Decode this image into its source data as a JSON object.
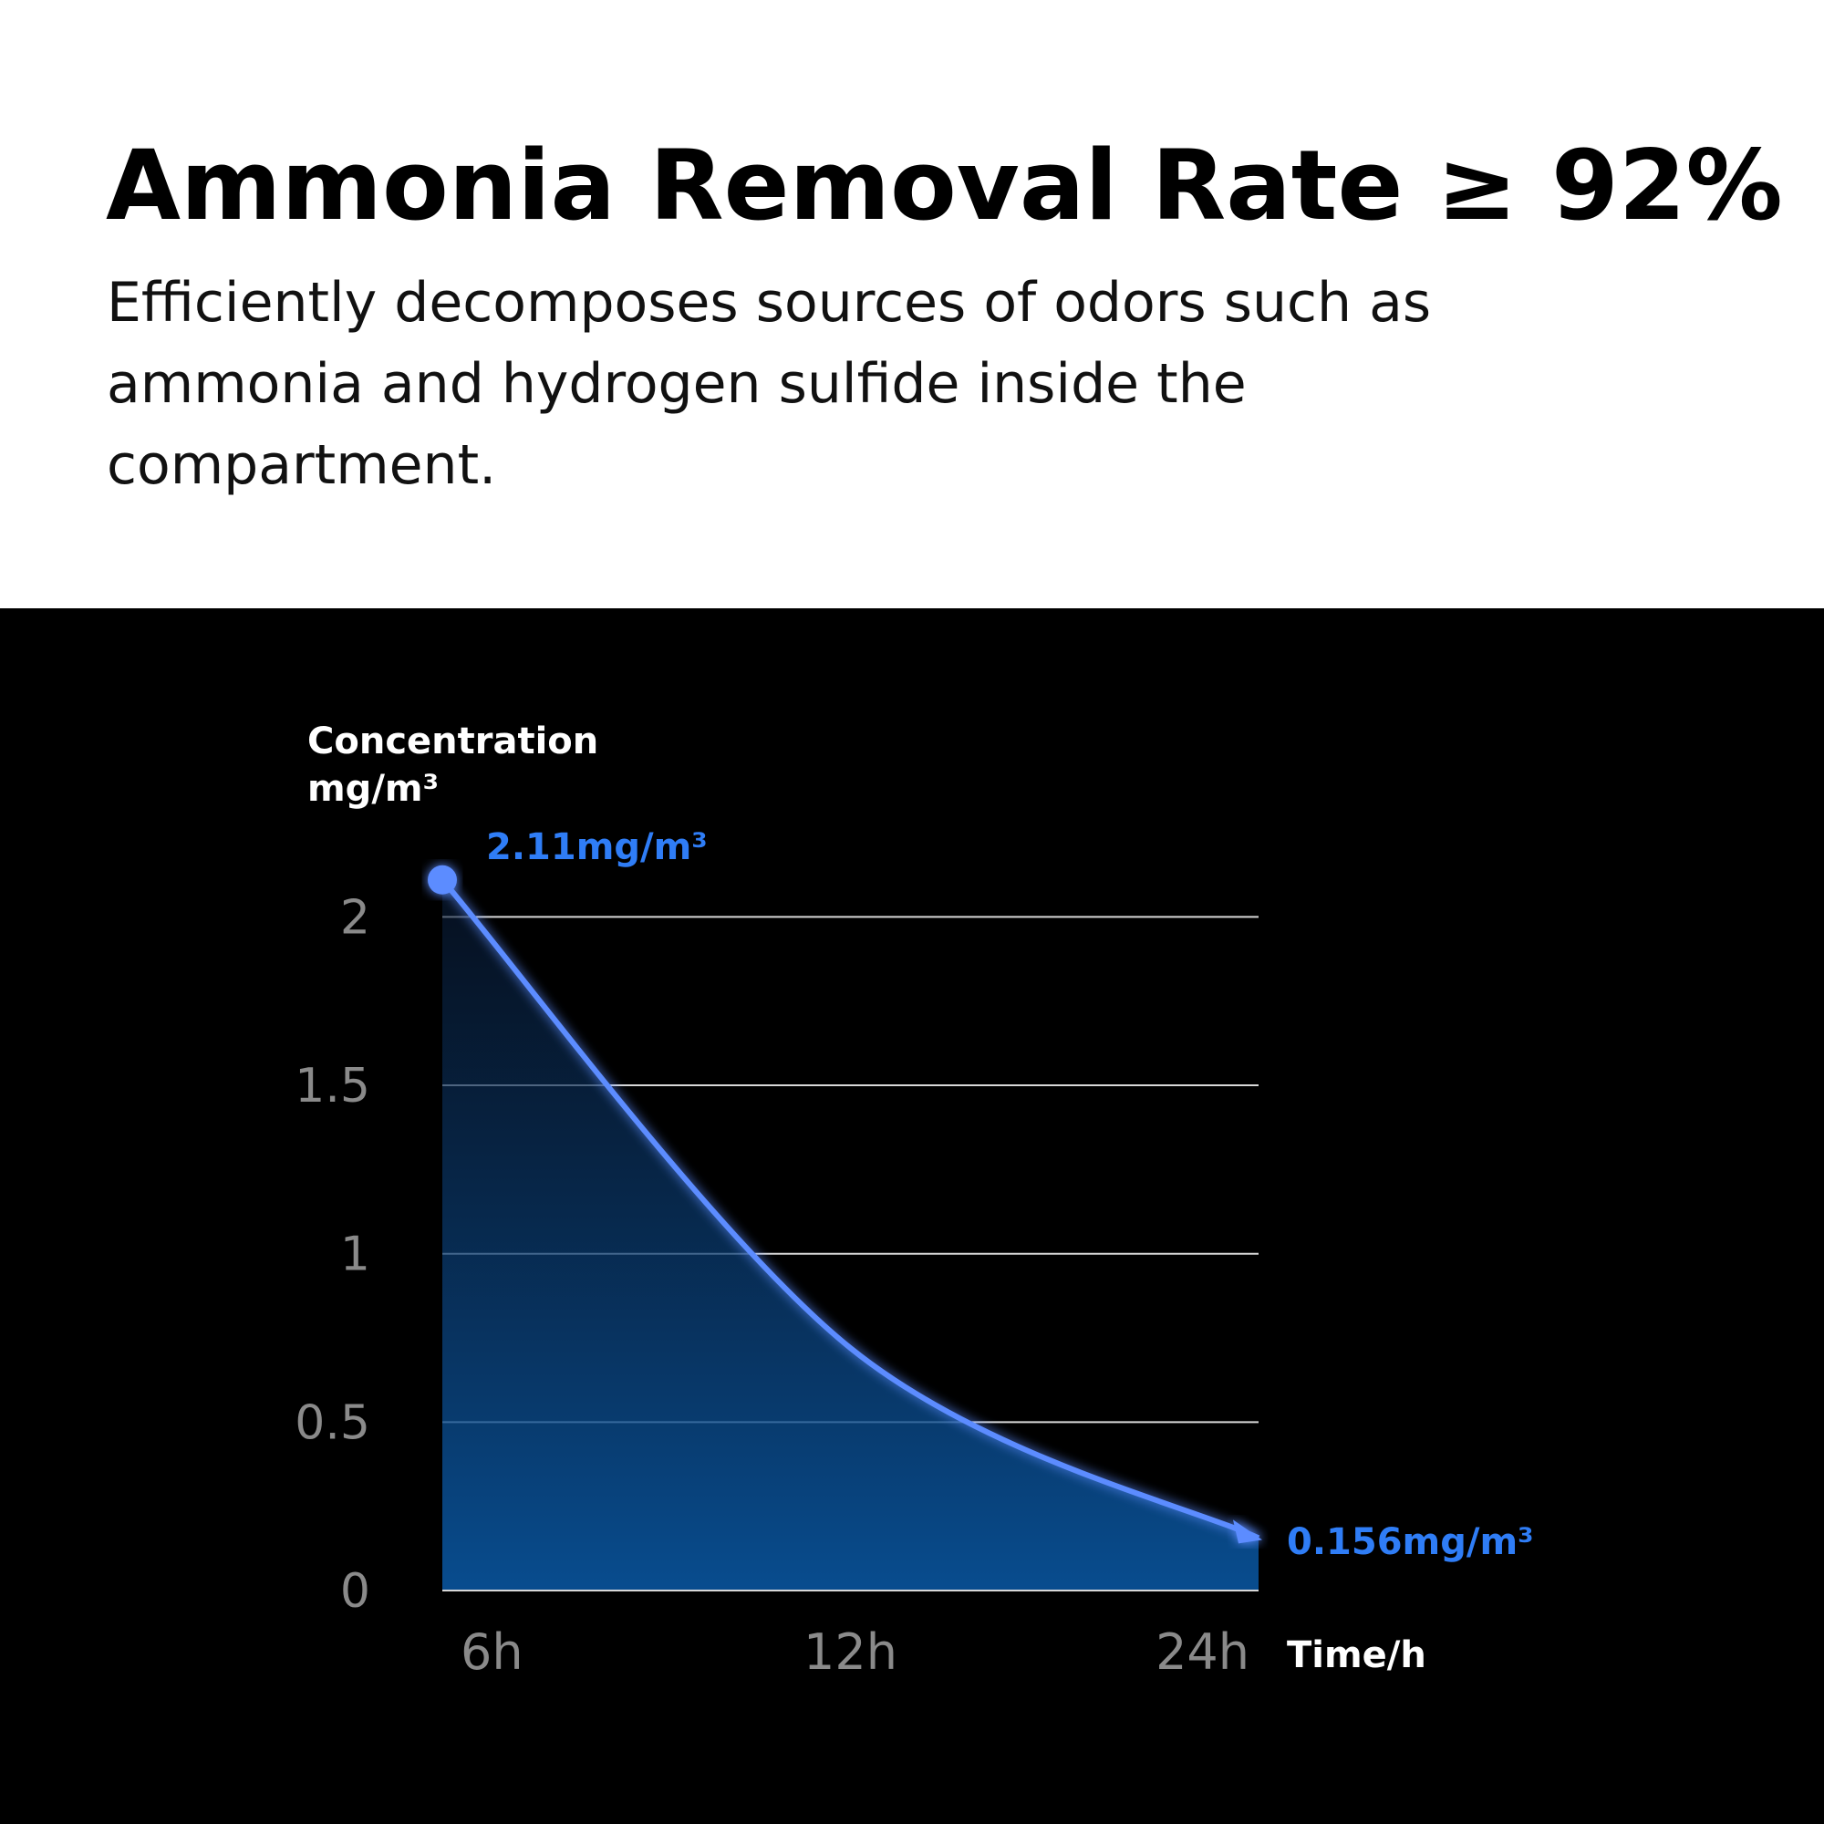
{
  "chart_data": {
    "type": "line",
    "title": "Ammonia Removal Rate ≥ 92%",
    "subtitle_lines": [
      "Efficiently decomposes sources of odors such as",
      "ammonia and hydrogen sulfide inside the",
      "compartment."
    ],
    "y_label_lines": [
      "Concentration",
      "mg/m³"
    ],
    "x_label": "Time/h",
    "categories": [
      "6h",
      "12h",
      "24h"
    ],
    "values": [
      2.11,
      0.72,
      0.156
    ],
    "value_labels": [
      "2.11mg/m³",
      null,
      "0.156mg/m³"
    ],
    "color": "#5b8cff",
    "label_color": "#2f7df6",
    "ylim": [
      0,
      2.15
    ],
    "yticks": [
      0,
      0.5,
      1,
      1.5,
      2
    ],
    "grid": true
  }
}
